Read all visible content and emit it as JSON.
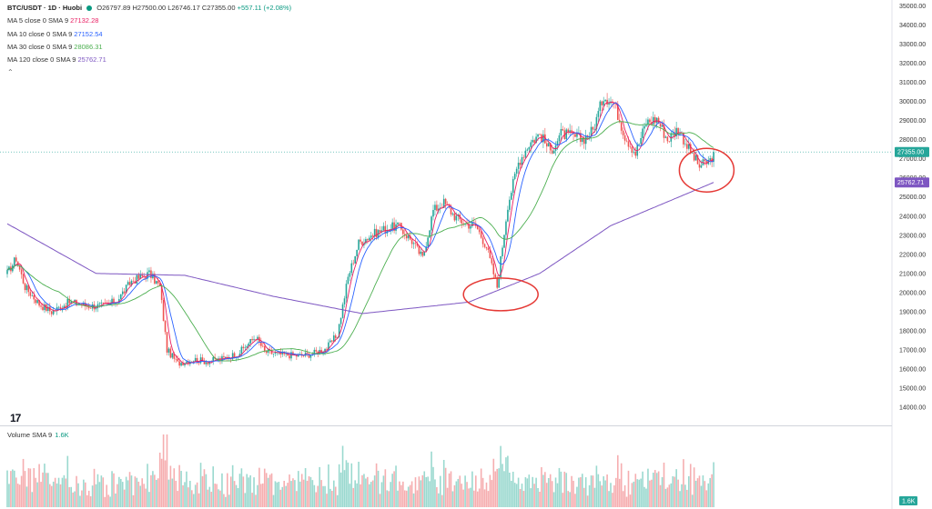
{
  "header": {
    "symbol": "BTC/USDT · 1D · Huobi",
    "open": "O26797.89",
    "high": "H27500.00",
    "low": "L26746.17",
    "close": "C27355.00",
    "change": "+557.11 (+2.08%)"
  },
  "ma_legend": [
    {
      "label": "MA 5 close 0 SMA 9",
      "value": "27132.28",
      "color": "#e91e63"
    },
    {
      "label": "MA 10 close 0 SMA 9",
      "value": "27152.54",
      "color": "#2962ff"
    },
    {
      "label": "MA 30 close 0 SMA 9",
      "value": "28086.31",
      "color": "#4caf50"
    },
    {
      "label": "MA 120 close 0 SMA 9",
      "value": "25762.71",
      "color": "#7e57c2"
    }
  ],
  "volume_legend": {
    "label": "Volume SMA 9",
    "value": "1.6K"
  },
  "logo_text": "17",
  "colors": {
    "up": "#26a69a",
    "down": "#ef5350",
    "vol_up": "#9ad9cf",
    "vol_down": "#f6aeb0",
    "ma5": "#e91e63",
    "ma10": "#2962ff",
    "ma30": "#4caf50",
    "ma120": "#7e57c2",
    "annotation": "#e53935"
  },
  "chart_data": {
    "type": "candlestick",
    "title": "BTC/USDT · 1D · Huobi",
    "ylim": [
      13500,
      35000
    ],
    "y_ticks": [
      14000,
      15000,
      16000,
      17000,
      18000,
      19000,
      20000,
      21000,
      22000,
      23000,
      24000,
      25000,
      26000,
      27000,
      28000,
      29000,
      30000,
      31000,
      32000,
      33000,
      34000,
      35000
    ],
    "y_tick_labels": [
      "14000.00",
      "15000.00",
      "16000.00",
      "17000.00",
      "18000.00",
      "19000.00",
      "20000.00",
      "21000.00",
      "22000.00",
      "23000.00",
      "24000.00",
      "25000.00",
      "26000.00",
      "27000.00",
      "28000.00",
      "29000.00",
      "30000.00",
      "31000.00",
      "32000.00",
      "33000.00",
      "34000.00",
      "35000.00"
    ],
    "price_badges": [
      {
        "label": "27355.00",
        "value": 27355,
        "color": "#26a69a"
      },
      {
        "label": "25762.71",
        "value": 25762.71,
        "color": "#7e57c2"
      }
    ],
    "close_anchors": [
      [
        0,
        21000
      ],
      [
        5,
        21800
      ],
      [
        10,
        20300
      ],
      [
        18,
        19400
      ],
      [
        25,
        19000
      ],
      [
        35,
        19500
      ],
      [
        45,
        19300
      ],
      [
        55,
        19300
      ],
      [
        62,
        19600
      ],
      [
        70,
        20600
      ],
      [
        80,
        21000
      ],
      [
        86,
        20300
      ],
      [
        90,
        17000
      ],
      [
        96,
        16300
      ],
      [
        105,
        16500
      ],
      [
        112,
        16400
      ],
      [
        120,
        16500
      ],
      [
        130,
        16800
      ],
      [
        140,
        17700
      ],
      [
        145,
        16900
      ],
      [
        155,
        16750
      ],
      [
        165,
        16700
      ],
      [
        172,
        16800
      ],
      [
        180,
        17100
      ],
      [
        186,
        17800
      ],
      [
        192,
        20800
      ],
      [
        198,
        22600
      ],
      [
        205,
        23000
      ],
      [
        212,
        23300
      ],
      [
        220,
        23500
      ],
      [
        228,
        22700
      ],
      [
        234,
        21800
      ],
      [
        240,
        24300
      ],
      [
        246,
        24700
      ],
      [
        252,
        24000
      ],
      [
        258,
        23600
      ],
      [
        264,
        23500
      ],
      [
        270,
        22400
      ],
      [
        276,
        20300
      ],
      [
        282,
        24600
      ],
      [
        288,
        26800
      ],
      [
        294,
        27800
      ],
      [
        300,
        28300
      ],
      [
        306,
        27400
      ],
      [
        312,
        28300
      ],
      [
        318,
        28200
      ],
      [
        324,
        28000
      ],
      [
        330,
        28500
      ],
      [
        336,
        30300
      ],
      [
        342,
        29900
      ],
      [
        348,
        28200
      ],
      [
        354,
        27300
      ],
      [
        360,
        28900
      ],
      [
        366,
        29100
      ],
      [
        372,
        28000
      ],
      [
        378,
        28600
      ],
      [
        384,
        27500
      ],
      [
        390,
        26600
      ],
      [
        396,
        26900
      ],
      [
        398,
        27355
      ]
    ],
    "ma120_anchors": [
      [
        0,
        23600
      ],
      [
        50,
        21000
      ],
      [
        100,
        20900
      ],
      [
        150,
        19800
      ],
      [
        200,
        18900
      ],
      [
        260,
        19500
      ],
      [
        300,
        21000
      ],
      [
        340,
        23500
      ],
      [
        398,
        25762.71
      ]
    ],
    "annotations": [
      {
        "type": "ellipse",
        "near_index": 276,
        "near_price": 20000
      },
      {
        "type": "ellipse",
        "near_index": 392,
        "near_price": 26500
      }
    ]
  }
}
